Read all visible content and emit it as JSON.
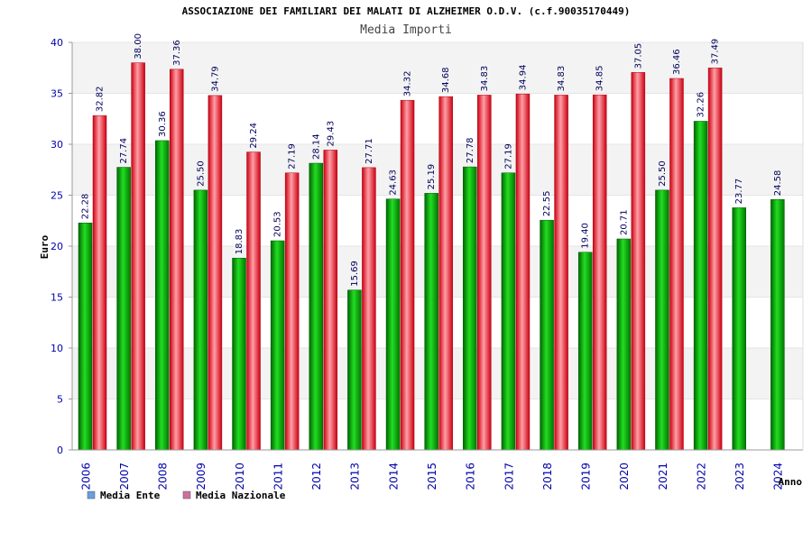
{
  "chart_data": {
    "type": "bar",
    "title": "ASSOCIAZIONE DEI FAMILIARI DEI MALATI DI ALZHEIMER O.D.V. (c.f.90035170449)",
    "subtitle": "Media Importi",
    "xlabel": "Anno",
    "ylabel": "Euro",
    "ylim": [
      0,
      40
    ],
    "yticks": [
      0,
      5,
      10,
      15,
      20,
      25,
      30,
      35,
      40
    ],
    "grid": "horizontal alternating bands",
    "legend_position": "bottom-left",
    "categories": [
      "2006",
      "2007",
      "2008",
      "2009",
      "2010",
      "2011",
      "2012",
      "2013",
      "2014",
      "2015",
      "2016",
      "2017",
      "2018",
      "2019",
      "2020",
      "2021",
      "2022",
      "2023",
      "2024"
    ],
    "series": [
      {
        "name": "Media Ente",
        "color": "#00aa00",
        "legend_color": "#6a9ee0",
        "values": [
          22.28,
          27.74,
          30.36,
          25.5,
          18.83,
          20.53,
          28.14,
          15.69,
          24.63,
          25.19,
          27.78,
          27.19,
          22.55,
          19.4,
          20.71,
          25.5,
          32.26,
          23.77,
          24.58
        ],
        "labels": [
          "22.28",
          "27.74",
          "30.36",
          "25.50",
          "18.83",
          "20.53",
          "28.14",
          "15.69",
          "24.63",
          "25.19",
          "27.78",
          "27.19",
          "22.55",
          "19.40",
          "20.71",
          "25.50",
          "32.26",
          "23.77",
          "24.58"
        ]
      },
      {
        "name": "Media Nazionale",
        "color": "#dd1122",
        "legend_color": "#d070a0",
        "values": [
          32.82,
          38.0,
          37.36,
          34.79,
          29.24,
          27.19,
          29.43,
          27.71,
          34.32,
          34.68,
          34.83,
          34.94,
          34.83,
          34.85,
          37.05,
          36.46,
          37.49,
          null,
          null
        ],
        "labels": [
          "32.82",
          "38.00",
          "37.36",
          "34.79",
          "29.24",
          "27.19",
          "29.43",
          "27.71",
          "34.32",
          "34.68",
          "34.83",
          "34.94",
          "34.83",
          "34.85",
          "37.05",
          "36.46",
          "37.49",
          null,
          null
        ]
      }
    ]
  }
}
